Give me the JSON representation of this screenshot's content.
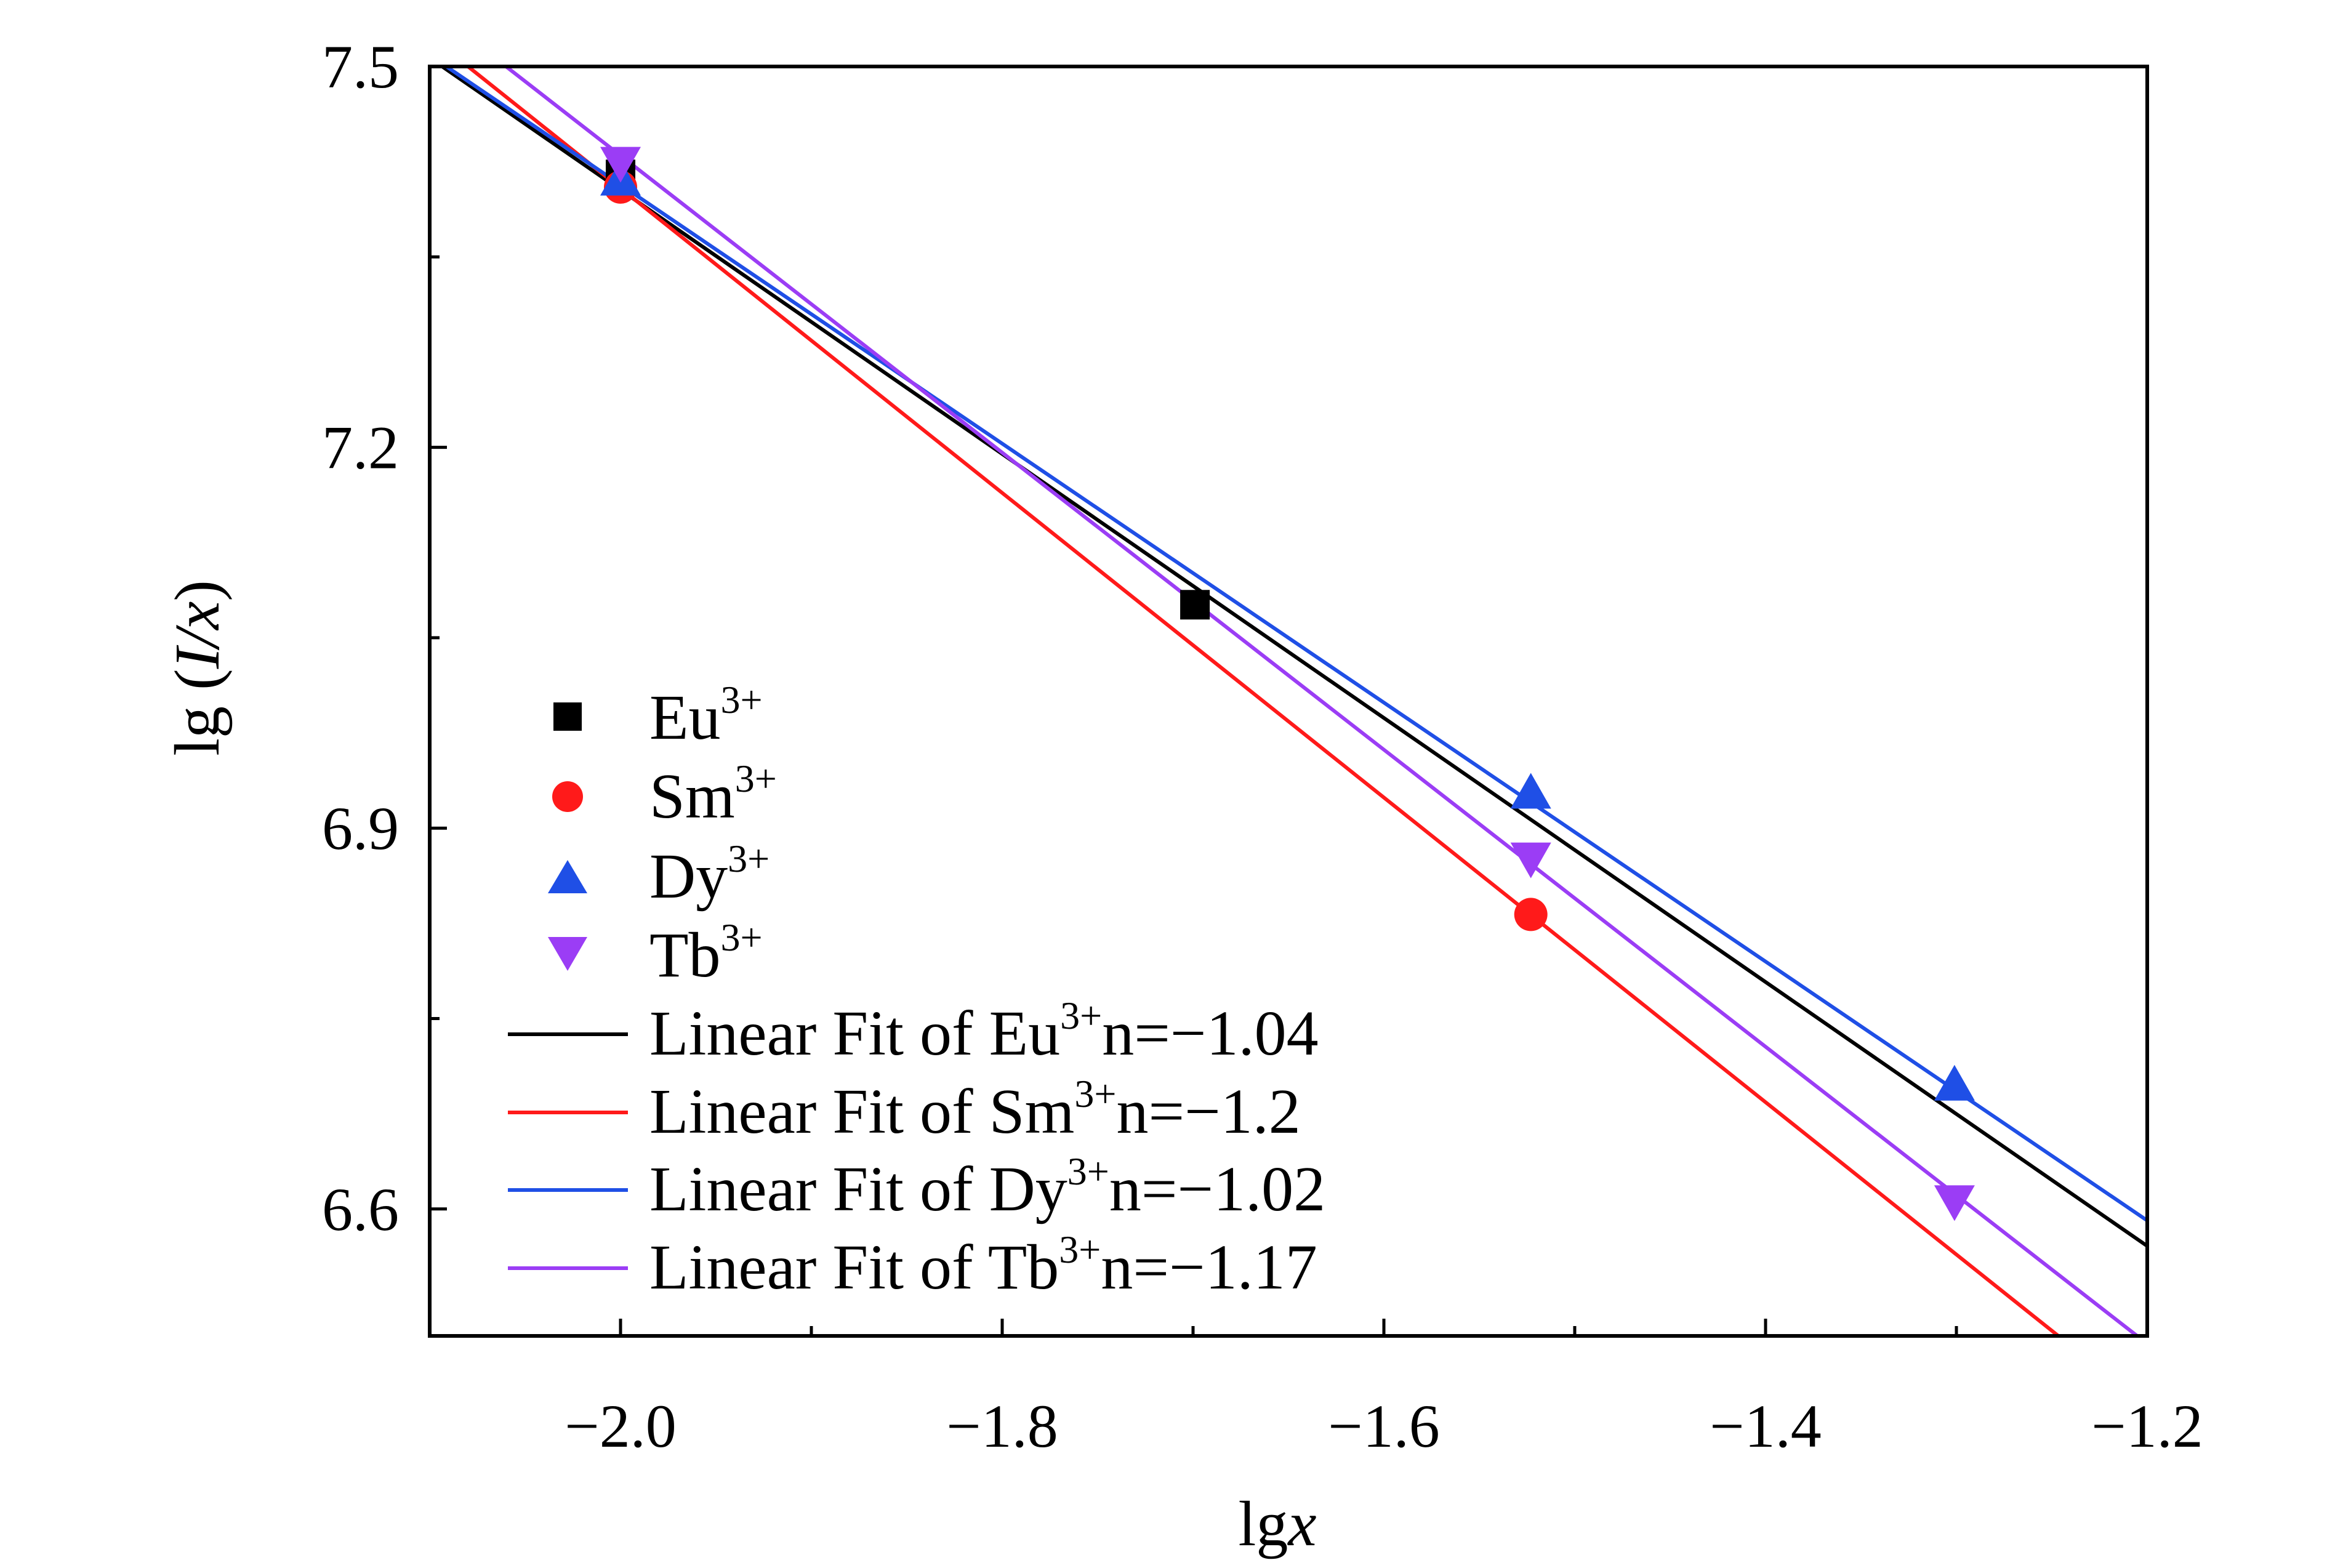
{
  "chart_data": {
    "type": "scatter",
    "title": "",
    "xlabel": {
      "prefix": "lg",
      "var": "x"
    },
    "ylabel": {
      "prefix": "lg (",
      "var": "I/x",
      "suffix": ")"
    },
    "xlim": [
      -2.1,
      -1.2
    ],
    "ylim": [
      6.5,
      7.5
    ],
    "x_ticks": [
      -2.0,
      -1.8,
      -1.6,
      -1.4,
      -1.2
    ],
    "x_tick_labels": [
      "−2.0",
      "−1.8",
      "−1.6",
      "−1.4",
      "−1.2"
    ],
    "x_minor_ticks": [
      -1.9,
      -1.7,
      -1.5,
      -1.3
    ],
    "y_ticks": [
      6.6,
      6.9,
      7.2,
      7.5
    ],
    "y_tick_labels": [
      "6.6",
      "6.9",
      "7.2",
      "7.5"
    ],
    "y_minor_ticks": [
      6.75,
      7.05,
      7.35
    ],
    "grid": false,
    "legend_position": "center-left",
    "series": [
      {
        "name": "Eu",
        "sup": "3+",
        "marker": "square",
        "color": "#000000",
        "points": [
          {
            "x": -2.0,
            "y": 7.415
          },
          {
            "x": -1.699,
            "y": 7.076
          }
        ],
        "fit_label": {
          "prefix": "Linear Fit of Eu",
          "sup": "3+",
          "suffix": "n=−1.04"
        },
        "fit": {
          "slope": -1.04,
          "intercept": 5.3228
        }
      },
      {
        "name": "Sm",
        "sup": "3+",
        "marker": "circle",
        "color": "#ff1a1a",
        "points": [
          {
            "x": -2.0,
            "y": 7.405
          },
          {
            "x": -1.523,
            "y": 6.832
          }
        ],
        "fit_label": {
          "prefix": "Linear Fit of Sm",
          "sup": "3+",
          "suffix": "n=−1.2"
        },
        "fit": {
          "slope": -1.2,
          "intercept": 5.0041
        }
      },
      {
        "name": "Dy",
        "sup": "3+",
        "marker": "triangle-up",
        "color": "#1f4fe6",
        "points": [
          {
            "x": -2.0,
            "y": 7.41
          },
          {
            "x": -1.523,
            "y": 6.927
          },
          {
            "x": -1.301,
            "y": 6.697
          }
        ],
        "fit_label": {
          "prefix": "Linear Fit of Dy",
          "sup": "3+",
          "suffix": "n=−1.02"
        },
        "fit": {
          "slope": -1.02,
          "intercept": 5.3669
        }
      },
      {
        "name": "Tb",
        "sup": "3+",
        "marker": "triangle-down",
        "color": "#9b3df5",
        "points": [
          {
            "x": -2.0,
            "y": 7.425
          },
          {
            "x": -1.523,
            "y": 6.877
          },
          {
            "x": -1.301,
            "y": 6.607
          }
        ],
        "fit_label": {
          "prefix": "Linear Fit of Tb",
          "sup": "3+",
          "suffix": "n=−1.17"
        },
        "fit": {
          "slope": -1.17,
          "intercept": 5.0898
        }
      }
    ]
  }
}
